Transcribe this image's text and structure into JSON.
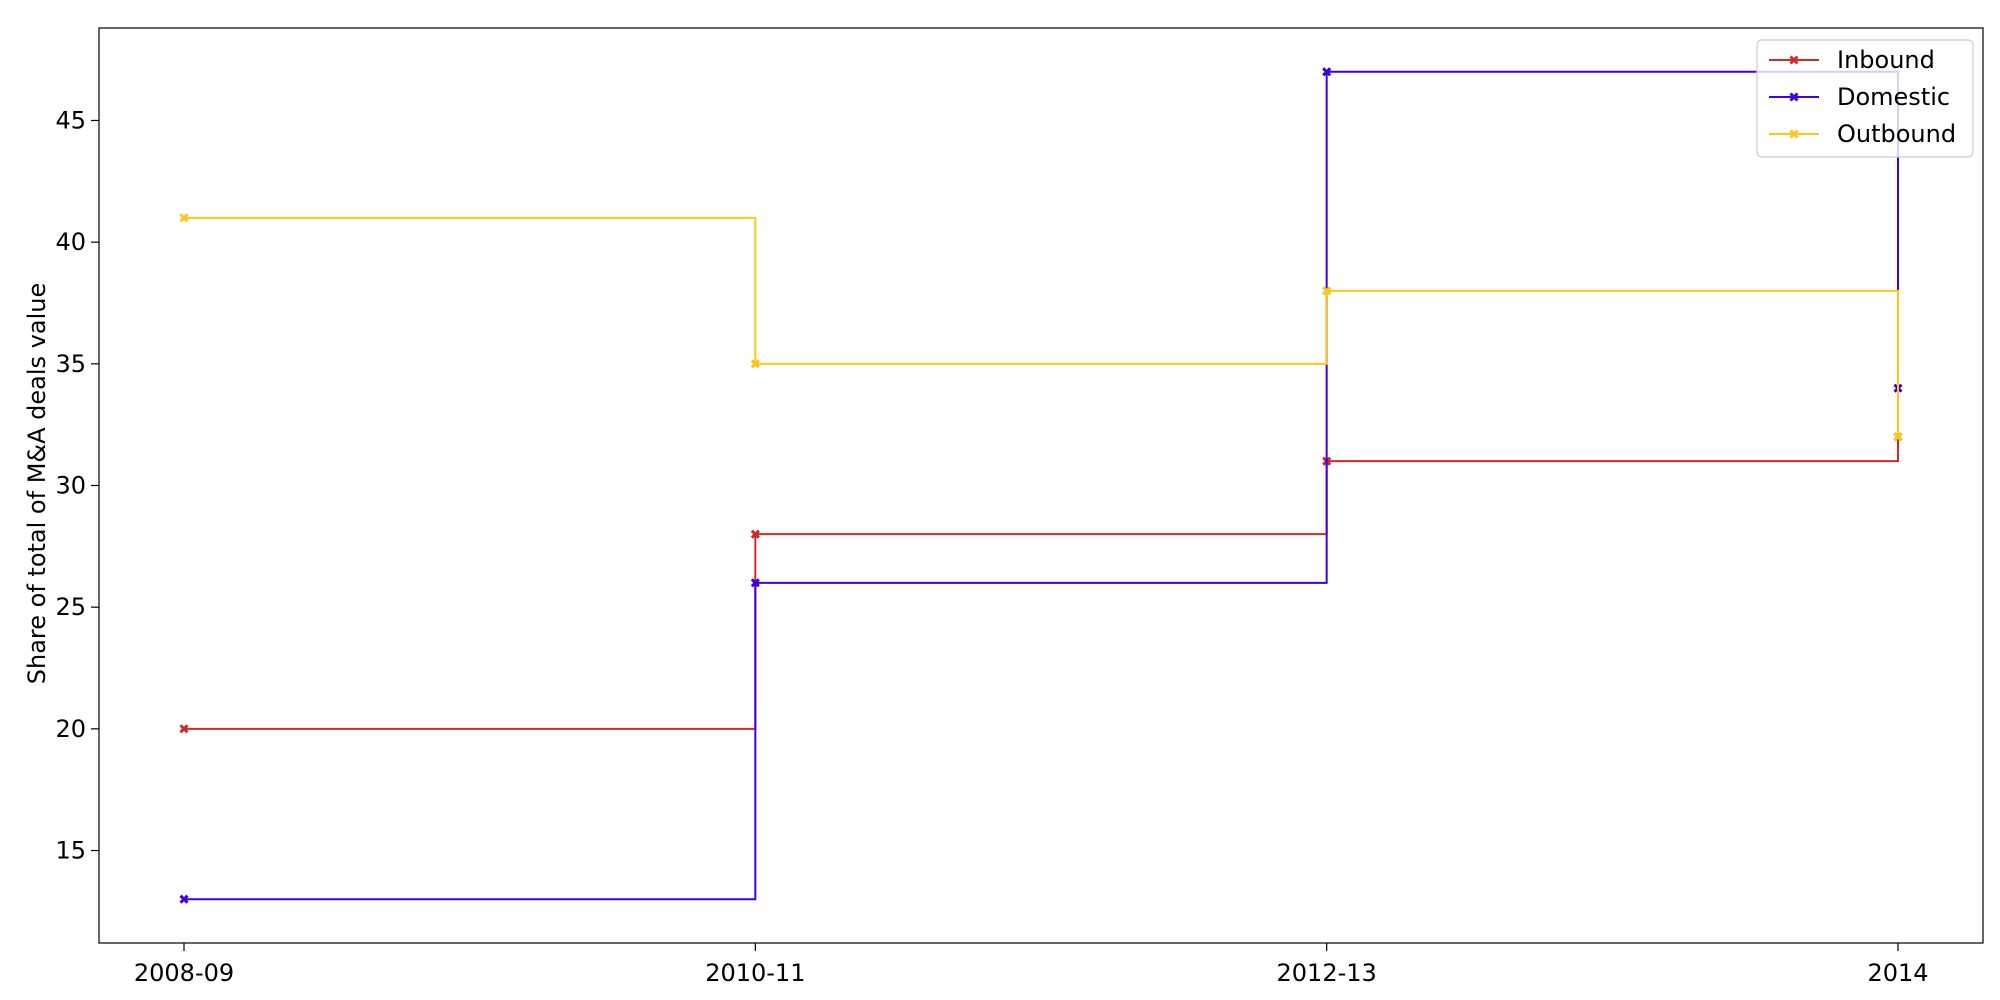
{
  "chart_data": {
    "type": "line",
    "step": "post",
    "categories": [
      "2008-09",
      "2010-11",
      "2012-13",
      "2014"
    ],
    "ylabel": "Share of total of M&A deals value",
    "xlabel": "",
    "ylim": [
      11.2,
      48.8
    ],
    "yticks": [
      15,
      20,
      25,
      30,
      35,
      40,
      45
    ],
    "legend_position": "top-right",
    "grid": false,
    "series": [
      {
        "name": "Inbound",
        "color": "#d62728",
        "values": [
          20,
          28,
          31,
          32
        ]
      },
      {
        "name": "Domestic",
        "color": "#3f00e0",
        "values": [
          13,
          26,
          47,
          34
        ]
      },
      {
        "name": "Outbound",
        "color": "#ffc61a",
        "values": [
          41,
          35,
          38,
          32
        ]
      }
    ]
  }
}
